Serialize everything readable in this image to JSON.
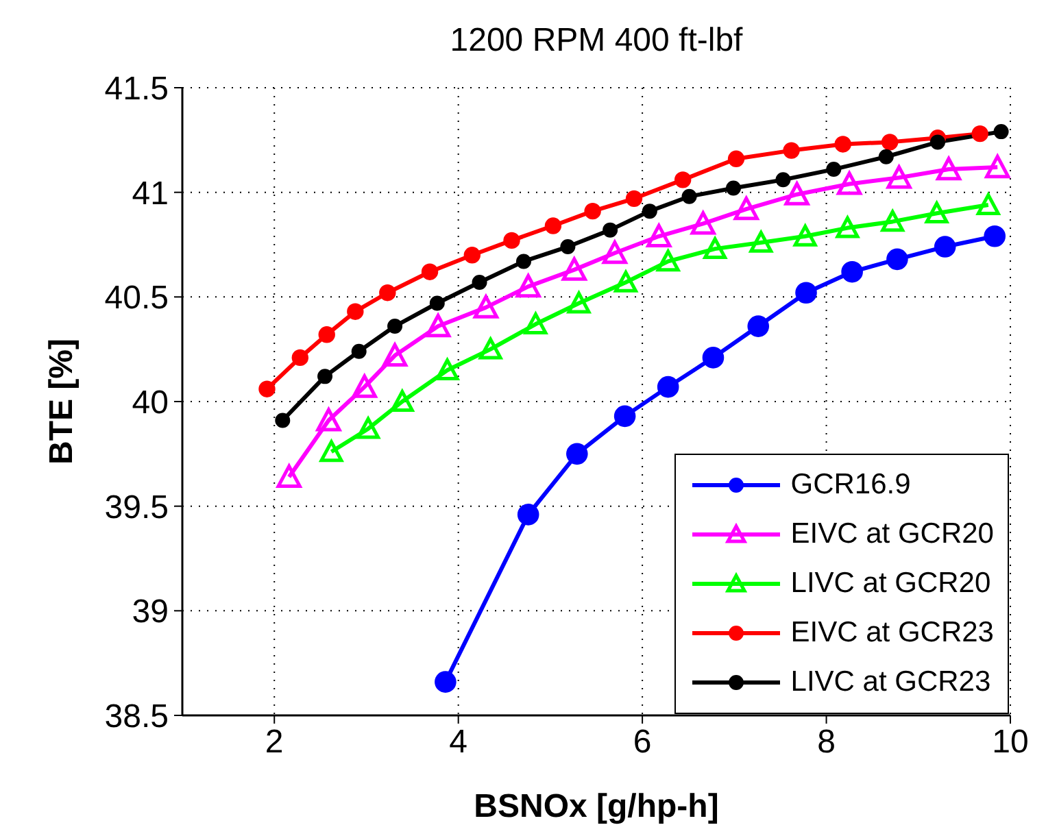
{
  "chart_data": {
    "type": "line",
    "title": "1200 RPM 400 ft-lbf",
    "xlabel": "BSNOx [g/hp-h]",
    "ylabel": "BTE [%]",
    "xlim": [
      1,
      10
    ],
    "xticks": [
      2,
      4,
      6,
      8,
      10
    ],
    "ylim": [
      38.5,
      41.5
    ],
    "yticks": [
      38.5,
      39,
      39.5,
      40,
      40.5,
      41,
      41.5
    ],
    "grid": true,
    "legend": "bottom right",
    "line_style": "solid",
    "series": [
      {
        "name": "GCR16.9",
        "color": "#0000ff",
        "marker": "circle",
        "x": [
          3.86,
          4.76,
          5.29,
          5.81,
          6.28,
          6.77,
          7.26,
          7.78,
          8.28,
          8.77,
          9.29,
          9.83
        ],
        "values": [
          38.66,
          39.46,
          39.75,
          39.93,
          40.07,
          40.21,
          40.36,
          40.52,
          40.62,
          40.68,
          40.74,
          40.79
        ]
      },
      {
        "name": "EIVC at GCR20",
        "color": "#ff00ff",
        "marker": "triangle",
        "x": [
          2.16,
          2.59,
          2.98,
          3.31,
          3.78,
          4.3,
          4.76,
          5.26,
          5.7,
          6.18,
          6.66,
          7.13,
          7.68,
          8.25,
          8.79,
          9.33,
          9.86
        ],
        "values": [
          39.64,
          39.91,
          40.07,
          40.22,
          40.36,
          40.45,
          40.55,
          40.63,
          40.71,
          40.79,
          40.85,
          40.92,
          40.99,
          41.04,
          41.07,
          41.11,
          41.12
        ]
      },
      {
        "name": "LIVC at GCR20",
        "color": "#00ff00",
        "marker": "triangle",
        "x": [
          2.62,
          3.02,
          3.39,
          3.88,
          4.35,
          4.84,
          5.31,
          5.82,
          6.28,
          6.79,
          7.29,
          7.77,
          8.23,
          8.72,
          9.2,
          9.76
        ],
        "values": [
          39.76,
          39.87,
          40.0,
          40.15,
          40.25,
          40.37,
          40.47,
          40.57,
          40.67,
          40.73,
          40.76,
          40.79,
          40.83,
          40.86,
          40.9,
          40.94
        ]
      },
      {
        "name": "EIVC at GCR23",
        "color": "#ff0000",
        "marker": "circle",
        "x": [
          1.92,
          2.28,
          2.57,
          2.88,
          3.23,
          3.69,
          4.15,
          4.58,
          5.03,
          5.46,
          5.91,
          6.44,
          7.02,
          7.62,
          8.18,
          8.69,
          9.21,
          9.67
        ],
        "values": [
          40.06,
          40.21,
          40.32,
          40.43,
          40.52,
          40.62,
          40.7,
          40.77,
          40.84,
          40.91,
          40.97,
          41.06,
          41.16,
          41.2,
          41.23,
          41.24,
          41.26,
          41.28
        ]
      },
      {
        "name": "LIVC at GCR23",
        "color": "#000000",
        "marker": "circle",
        "x": [
          2.09,
          2.55,
          2.92,
          3.31,
          3.77,
          4.23,
          4.71,
          5.19,
          5.65,
          6.08,
          6.51,
          6.99,
          7.53,
          8.08,
          8.65,
          9.21,
          9.9
        ],
        "values": [
          39.91,
          40.12,
          40.24,
          40.36,
          40.47,
          40.57,
          40.67,
          40.74,
          40.82,
          40.91,
          40.98,
          41.02,
          41.06,
          41.11,
          41.17,
          41.24,
          41.29
        ]
      }
    ]
  }
}
